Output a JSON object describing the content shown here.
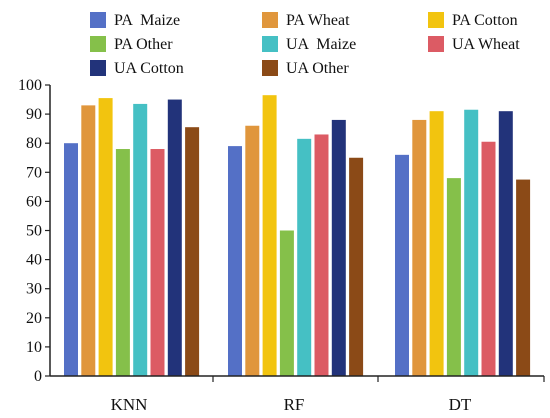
{
  "chart_data": {
    "type": "bar",
    "categories": [
      "KNN",
      "RF",
      "DT"
    ],
    "ylim": [
      0,
      100
    ],
    "yticks": [
      0,
      10,
      20,
      30,
      40,
      50,
      60,
      70,
      80,
      90,
      100
    ],
    "grid": false,
    "legend_position": "top",
    "series": [
      {
        "name": "PA  Maize",
        "color": "#5470c6",
        "values": [
          80,
          79,
          76
        ]
      },
      {
        "name": "PA Wheat",
        "color": "#e0963c",
        "values": [
          93,
          86,
          88
        ]
      },
      {
        "name": "PA Cotton",
        "color": "#f2c40f",
        "values": [
          95.5,
          96.5,
          91
        ]
      },
      {
        "name": "PA Other",
        "color": "#85c04a",
        "values": [
          78,
          50,
          68
        ]
      },
      {
        "name": "UA  Maize",
        "color": "#45c0c4",
        "values": [
          93.5,
          81.5,
          91.5
        ]
      },
      {
        "name": "UA Wheat",
        "color": "#dc5b64",
        "values": [
          78,
          83,
          80.5
        ]
      },
      {
        "name": "UA Cotton",
        "color": "#22337a",
        "values": [
          95,
          88,
          91
        ]
      },
      {
        "name": "UA Other",
        "color": "#8b4a17",
        "values": [
          85.5,
          75,
          67.5
        ]
      }
    ]
  }
}
